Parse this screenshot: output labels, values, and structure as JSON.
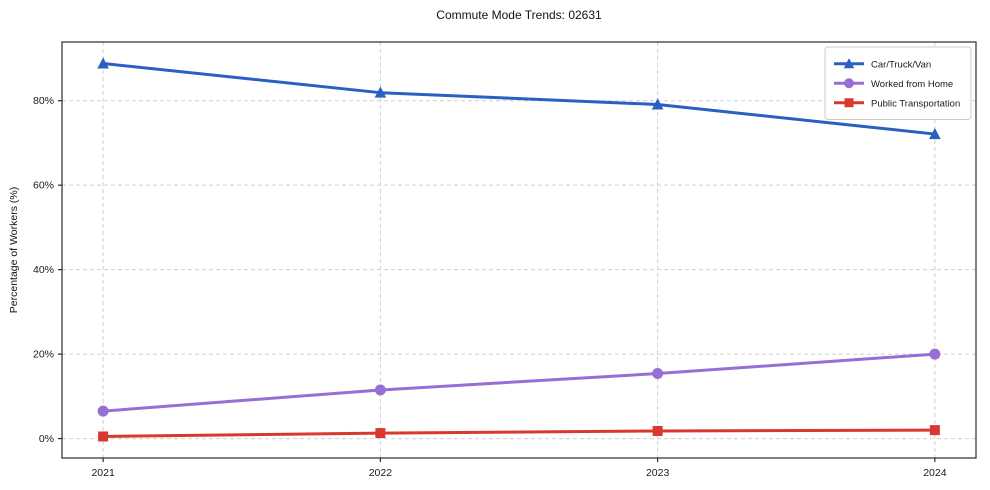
{
  "figure": {
    "title": "Commute Mode Trends: 02631",
    "ylabel": "Percentage of Workers (%)"
  },
  "chart_data": {
    "type": "line",
    "title": "Commute Mode Trends: 02631",
    "xlabel": "",
    "ylabel": "Percentage of Workers (%)",
    "categories": [
      "2021",
      "2022",
      "2023",
      "2024"
    ],
    "series": [
      {
        "name": "Car/Truck/Van",
        "color": "#2a5fc4",
        "marker": "triangle",
        "values": [
          88.8,
          81.9,
          79.1,
          72.1
        ]
      },
      {
        "name": "Worked from Home",
        "color": "#976fd4",
        "marker": "circle",
        "values": [
          6.5,
          11.5,
          15.4,
          20.0
        ]
      },
      {
        "name": "Public Transportation",
        "color": "#d8392f",
        "marker": "square",
        "values": [
          0.5,
          1.3,
          1.8,
          2.0
        ]
      }
    ],
    "yticks": [
      0,
      20,
      40,
      60,
      80
    ],
    "ytick_labels": [
      "0%",
      "20%",
      "40%",
      "60%",
      "80%"
    ],
    "ylim": [
      -4.6,
      93.9
    ],
    "grid": true,
    "grid_color": "#cfcfcf",
    "spine_color": "#2b2b2b",
    "legend_position": "upper right",
    "legend_border_color": "#cccccc"
  }
}
